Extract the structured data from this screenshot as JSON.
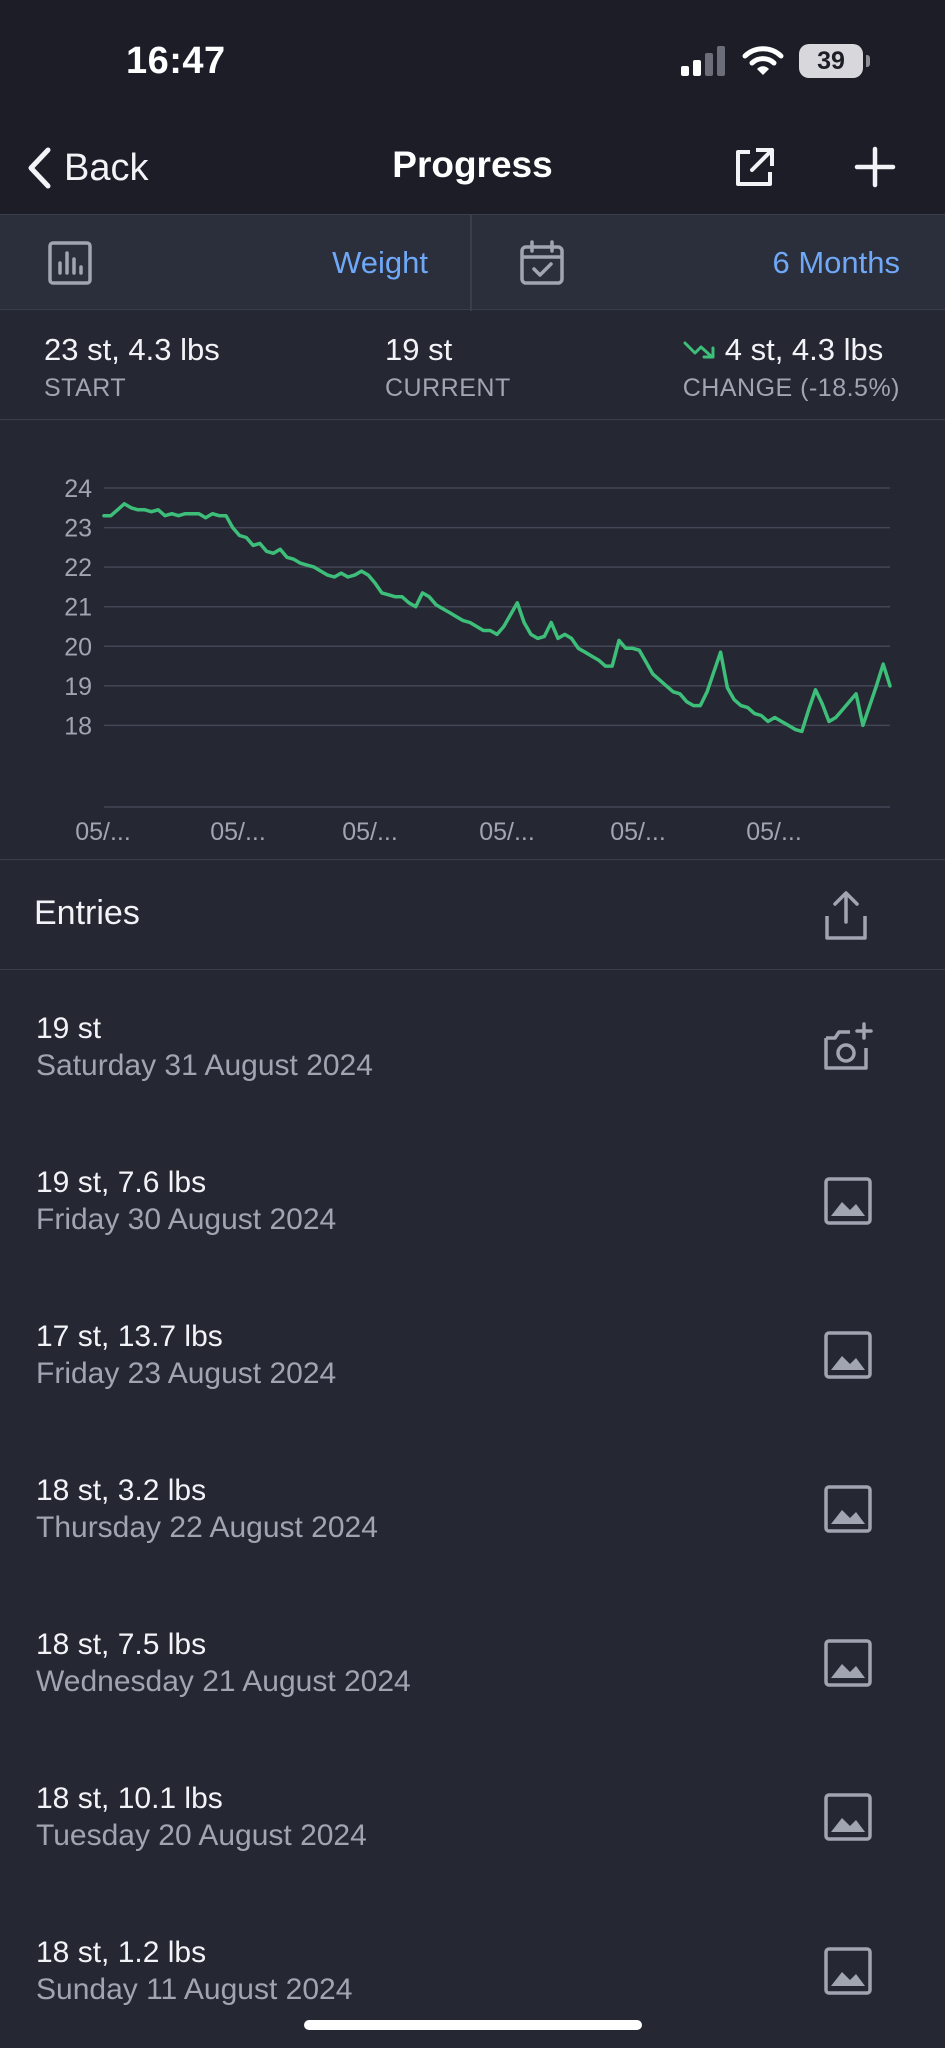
{
  "status_bar": {
    "time": "16:47",
    "battery": "39"
  },
  "nav": {
    "back_label": "Back",
    "title": "Progress"
  },
  "filters": {
    "metric_label": "Weight",
    "range_label": "6 Months"
  },
  "stats": {
    "start": {
      "value": "23 st, 4.3 lbs",
      "label": "START"
    },
    "current": {
      "value": "19 st",
      "label": "CURRENT"
    },
    "change": {
      "value": "4 st, 4.3 lbs",
      "label": "CHANGE (-18.5%)"
    }
  },
  "chart_data": {
    "type": "line",
    "title": "",
    "xlabel": "",
    "ylabel": "",
    "ylim": [
      17,
      24
    ],
    "yticks": [
      24,
      23,
      22,
      21,
      20,
      19,
      18
    ],
    "xtick_labels": [
      "05/...",
      "05/...",
      "05/...",
      "05/...",
      "05/...",
      "05/..."
    ],
    "grid": true,
    "line_color": "#3dbf7a",
    "series": [
      {
        "values": [
          23.3,
          23.3,
          23.45,
          23.6,
          23.5,
          23.45,
          23.45,
          23.4,
          23.45,
          23.3,
          23.35,
          23.3,
          23.35,
          23.35,
          23.35,
          23.25,
          23.35,
          23.3,
          23.3,
          23.0,
          22.8,
          22.75,
          22.55,
          22.6,
          22.4,
          22.35,
          22.45,
          22.25,
          22.2,
          22.1,
          22.05,
          22.0,
          21.9,
          21.8,
          21.75,
          21.85,
          21.75,
          21.8,
          21.9,
          21.8,
          21.6,
          21.35,
          21.3,
          21.25,
          21.25,
          21.1,
          21.0,
          21.35,
          21.25,
          21.05,
          20.95,
          20.85,
          20.75,
          20.65,
          20.6,
          20.5,
          20.4,
          20.4,
          20.3,
          20.5,
          20.8,
          21.1,
          20.6,
          20.3,
          20.2,
          20.25,
          20.6,
          20.2,
          20.3,
          20.2,
          19.95,
          19.85,
          19.75,
          19.65,
          19.5,
          19.5,
          20.15,
          19.95,
          19.95,
          19.9,
          19.6,
          19.3,
          19.15,
          19.0,
          18.85,
          18.8,
          18.6,
          18.5,
          18.5,
          18.85,
          19.35,
          19.85,
          18.95,
          18.65,
          18.5,
          18.45,
          18.3,
          18.25,
          18.1,
          18.2,
          18.1,
          18.0,
          17.9,
          17.85,
          18.4,
          18.9,
          18.55,
          18.1,
          18.2,
          18.4,
          18.6,
          18.8,
          18.0,
          18.5,
          19.0,
          19.55,
          19.0
        ]
      }
    ]
  },
  "entries_section": {
    "title": "Entries"
  },
  "entries": [
    {
      "value": "19 st",
      "date": "Saturday 31 August 2024",
      "icon": "add-photo-icon"
    },
    {
      "value": "19 st, 7.6 lbs",
      "date": "Friday 30 August 2024",
      "icon": "photo-icon"
    },
    {
      "value": "17 st, 13.7 lbs",
      "date": "Friday 23 August 2024",
      "icon": "photo-icon"
    },
    {
      "value": "18 st, 3.2 lbs",
      "date": "Thursday 22 August 2024",
      "icon": "photo-icon"
    },
    {
      "value": "18 st, 7.5 lbs",
      "date": "Wednesday 21 August 2024",
      "icon": "photo-icon"
    },
    {
      "value": "18 st, 10.1 lbs",
      "date": "Tuesday 20 August 2024",
      "icon": "photo-icon"
    },
    {
      "value": "18 st, 1.2 lbs",
      "date": "Sunday 11 August 2024",
      "icon": "photo-icon"
    }
  ],
  "colors": {
    "accent": "#6ea8f7",
    "chart_line": "#3dbf7a",
    "background": "#252733",
    "header": "#1c1d27"
  }
}
